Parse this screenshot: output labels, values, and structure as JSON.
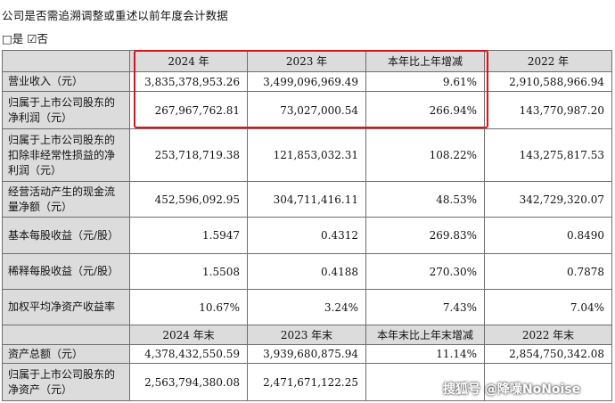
{
  "heading": "公司是否需追溯调整或重述以前年度会计数据",
  "choice": "□是 ☑否",
  "header1": [
    "2024 年",
    "2023 年",
    "本年比上年增减",
    "2022 年"
  ],
  "rows1": [
    {
      "label": "营业收入（元）",
      "v2024": "3,835,378,953.26",
      "v2023": "3,499,096,969.49",
      "change": "9.61%",
      "v2022": "2,910,588,966.94"
    },
    {
      "label": "归属于上市公司股东的净利润（元）",
      "v2024": "267,967,762.81",
      "v2023": "73,027,000.54",
      "change": "266.94%",
      "v2022": "143,770,987.20"
    },
    {
      "label": "归属于上市公司股东的扣除非经常性损益的净利润（元）",
      "v2024": "253,718,719.38",
      "v2023": "121,853,032.31",
      "change": "108.22%",
      "v2022": "143,275,817.53"
    },
    {
      "label": "经营活动产生的现金流量净额（元）",
      "v2024": "452,596,092.95",
      "v2023": "304,711,416.11",
      "change": "48.53%",
      "v2022": "342,729,320.07"
    },
    {
      "label": "基本每股收益（元/股）",
      "v2024": "1.5947",
      "v2023": "0.4312",
      "change": "269.83%",
      "v2022": "0.8490"
    },
    {
      "label": "稀释每股收益（元/股）",
      "v2024": "1.5508",
      "v2023": "0.4188",
      "change": "270.30%",
      "v2022": "0.7878"
    },
    {
      "label": "加权平均净资产收益率",
      "v2024": "10.67%",
      "v2023": "3.24%",
      "change": "7.43%",
      "v2022": "7.04%"
    }
  ],
  "header2": [
    "2024 年末",
    "2023 年末",
    "本年末比上年末增减",
    "2022 年末"
  ],
  "rows2": [
    {
      "label": "资产总额（元）",
      "v2024": "4,378,432,550.59",
      "v2023": "3,939,680,875.94",
      "change": "11.14%",
      "v2022": "2,854,750,342.08"
    },
    {
      "label": "归属于上市公司股东的净资产（元）",
      "v2024": "2,563,794,380.08",
      "v2023": "2,471,671,122.25",
      "change": "",
      "v2022": ""
    }
  ],
  "watermark": "搜狐号 @降噪NoNoise"
}
